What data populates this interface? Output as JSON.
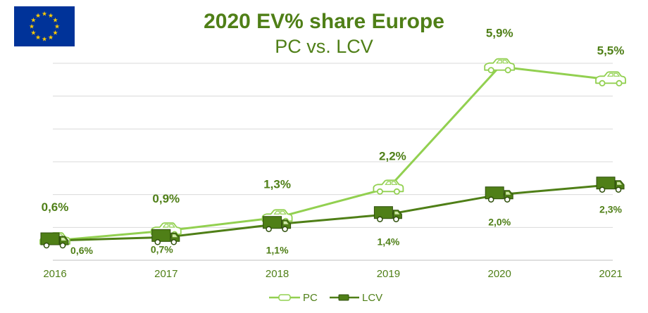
{
  "colors": {
    "pc": "#92d050",
    "lcv": "#4f7f17",
    "text": "#4f7f17",
    "grid": "#d9d9d9",
    "axis": "#bfbfbf",
    "flag_blue": "#003399",
    "flag_star": "#ffcc00"
  },
  "flag_icon": "eu-flag-icon",
  "chart_data": {
    "type": "line",
    "title": "2020 EV% share Europe",
    "subtitle": "PC vs. LCV",
    "categories": [
      "2016",
      "2017",
      "2018",
      "2019",
      "2020",
      "2021"
    ],
    "ylim": [
      0,
      6.9
    ],
    "grid": true,
    "legend_position": "bottom",
    "series": [
      {
        "name": "PC",
        "marker_icon": "car-icon",
        "values": [
          0.6,
          0.9,
          1.3,
          2.2,
          5.9,
          5.5
        ],
        "labels": [
          "0,6%",
          "0,9%",
          "1,3%",
          "2,2%",
          "5,9%",
          "5,5%"
        ]
      },
      {
        "name": "LCV",
        "marker_icon": "van-icon",
        "values": [
          0.6,
          0.7,
          1.1,
          1.4,
          2.0,
          2.3
        ],
        "labels": [
          "0,6%",
          "0,7%",
          "1,1%",
          "1,4%",
          "2,0%",
          "2,3%"
        ]
      }
    ]
  }
}
